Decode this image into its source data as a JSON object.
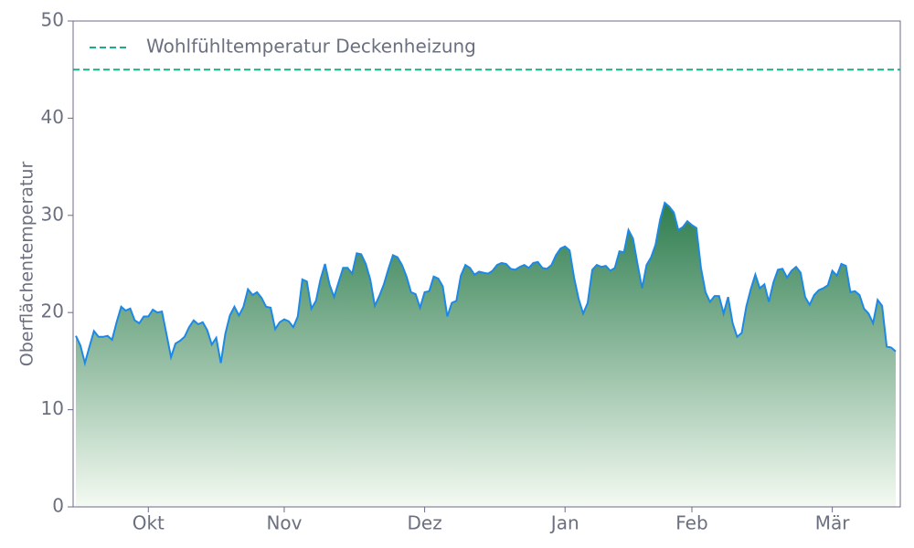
{
  "chart_data": {
    "type": "area",
    "y_label": "Oberflächentemperatur",
    "categories": [
      null,
      null,
      null,
      null,
      null,
      null,
      null,
      null,
      null,
      null,
      null,
      null,
      null,
      null,
      null,
      null,
      "Okt",
      null,
      null,
      null,
      null,
      null,
      null,
      null,
      null,
      null,
      null,
      null,
      null,
      null,
      null,
      null,
      null,
      null,
      null,
      null,
      null,
      null,
      null,
      null,
      null,
      null,
      null,
      null,
      null,
      null,
      "Nov",
      null,
      null,
      null,
      null,
      null,
      null,
      null,
      null,
      null,
      null,
      null,
      null,
      null,
      null,
      null,
      null,
      null,
      null,
      null,
      null,
      null,
      null,
      null,
      null,
      null,
      null,
      null,
      null,
      null,
      null,
      "Dez",
      null,
      null,
      null,
      null,
      null,
      null,
      null,
      null,
      null,
      null,
      null,
      null,
      null,
      null,
      null,
      null,
      null,
      null,
      null,
      null,
      null,
      null,
      null,
      null,
      null,
      null,
      null,
      null,
      null,
      null,
      "Jan",
      null,
      null,
      null,
      null,
      null,
      null,
      null,
      null,
      null,
      null,
      null,
      null,
      null,
      null,
      null,
      null,
      null,
      null,
      null,
      null,
      null,
      null,
      null,
      null,
      null,
      null,
      null,
      "Feb",
      null,
      null,
      null,
      null,
      null,
      null,
      null,
      null,
      null,
      null,
      null,
      null,
      null,
      null,
      null,
      null,
      null,
      null,
      null,
      null,
      null,
      null,
      null,
      null,
      null,
      null,
      null,
      null,
      null,
      null,
      "Mär",
      null,
      null,
      null,
      null,
      null,
      null,
      null,
      null,
      null,
      null,
      null,
      null,
      null,
      null
    ],
    "series": [
      {
        "color": "#1e88e5",
        "values": [
          17.6,
          16.6,
          14.8,
          16.5,
          18.1,
          17.5,
          17.5,
          17.6,
          17.2,
          19.0,
          20.6,
          20.2,
          20.4,
          19.2,
          18.9,
          19.6,
          19.6,
          20.3,
          20.0,
          20.1,
          17.8,
          15.4,
          16.8,
          17.1,
          17.5,
          18.5,
          19.2,
          18.8,
          19.0,
          18.2,
          16.7,
          17.4,
          14.8,
          17.8,
          19.7,
          20.6,
          19.7,
          20.6,
          22.4,
          21.8,
          22.1,
          21.5,
          20.6,
          20.5,
          18.3,
          19.0,
          19.3,
          19.1,
          18.5,
          19.6,
          23.4,
          23.2,
          20.4,
          21.2,
          23.4,
          25.0,
          22.9,
          21.6,
          23.1,
          24.6,
          24.6,
          24.0,
          26.1,
          26.0,
          25.0,
          23.4,
          20.7,
          21.7,
          22.9,
          24.5,
          25.9,
          25.7,
          24.9,
          23.7,
          22.1,
          21.9,
          20.5,
          22.1,
          22.2,
          23.7,
          23.5,
          22.7,
          19.6,
          21.0,
          21.2,
          23.8,
          24.9,
          24.6,
          23.9,
          24.2,
          24.1,
          24.0,
          24.3,
          24.9,
          25.1,
          25.0,
          24.5,
          24.4,
          24.7,
          24.9,
          24.6,
          25.1,
          25.2,
          24.6,
          24.5,
          24.9,
          25.9,
          26.6,
          26.8,
          26.4,
          23.6,
          21.4,
          19.9,
          21.0,
          24.4,
          24.9,
          24.7,
          24.8,
          24.3,
          24.6,
          26.3,
          26.2,
          28.5,
          27.6,
          25.0,
          22.5,
          24.9,
          25.7,
          27.0,
          29.6,
          31.3,
          30.9,
          30.3,
          28.5,
          28.8,
          29.4,
          29.0,
          28.7,
          24.6,
          22.1,
          21.1,
          21.7,
          21.7,
          19.9,
          21.6,
          18.9,
          17.5,
          17.9,
          20.6,
          22.4,
          23.9,
          22.5,
          22.9,
          21.1,
          23.1,
          24.4,
          24.5,
          23.6,
          24.3,
          24.7,
          24.1,
          21.6,
          20.8,
          21.8,
          22.3,
          22.5,
          22.8,
          24.3,
          23.8,
          25.0,
          24.8,
          22.1,
          22.2,
          21.8,
          20.4,
          19.9,
          18.9,
          21.3,
          20.7,
          16.5,
          16.4,
          16.0
        ]
      }
    ],
    "fill_colors": [
      "#2e7d4f",
      "#f4faf2"
    ],
    "reference_lines": [
      {
        "name": "Wohlfühltemperatur Deckenheizung",
        "value": 45,
        "color": "#1aae88",
        "dashed": true
      }
    ],
    "legend": "upper left",
    "ylim": [
      0,
      50
    ],
    "yticks": [
      0,
      10,
      20,
      30,
      40,
      50
    ]
  }
}
